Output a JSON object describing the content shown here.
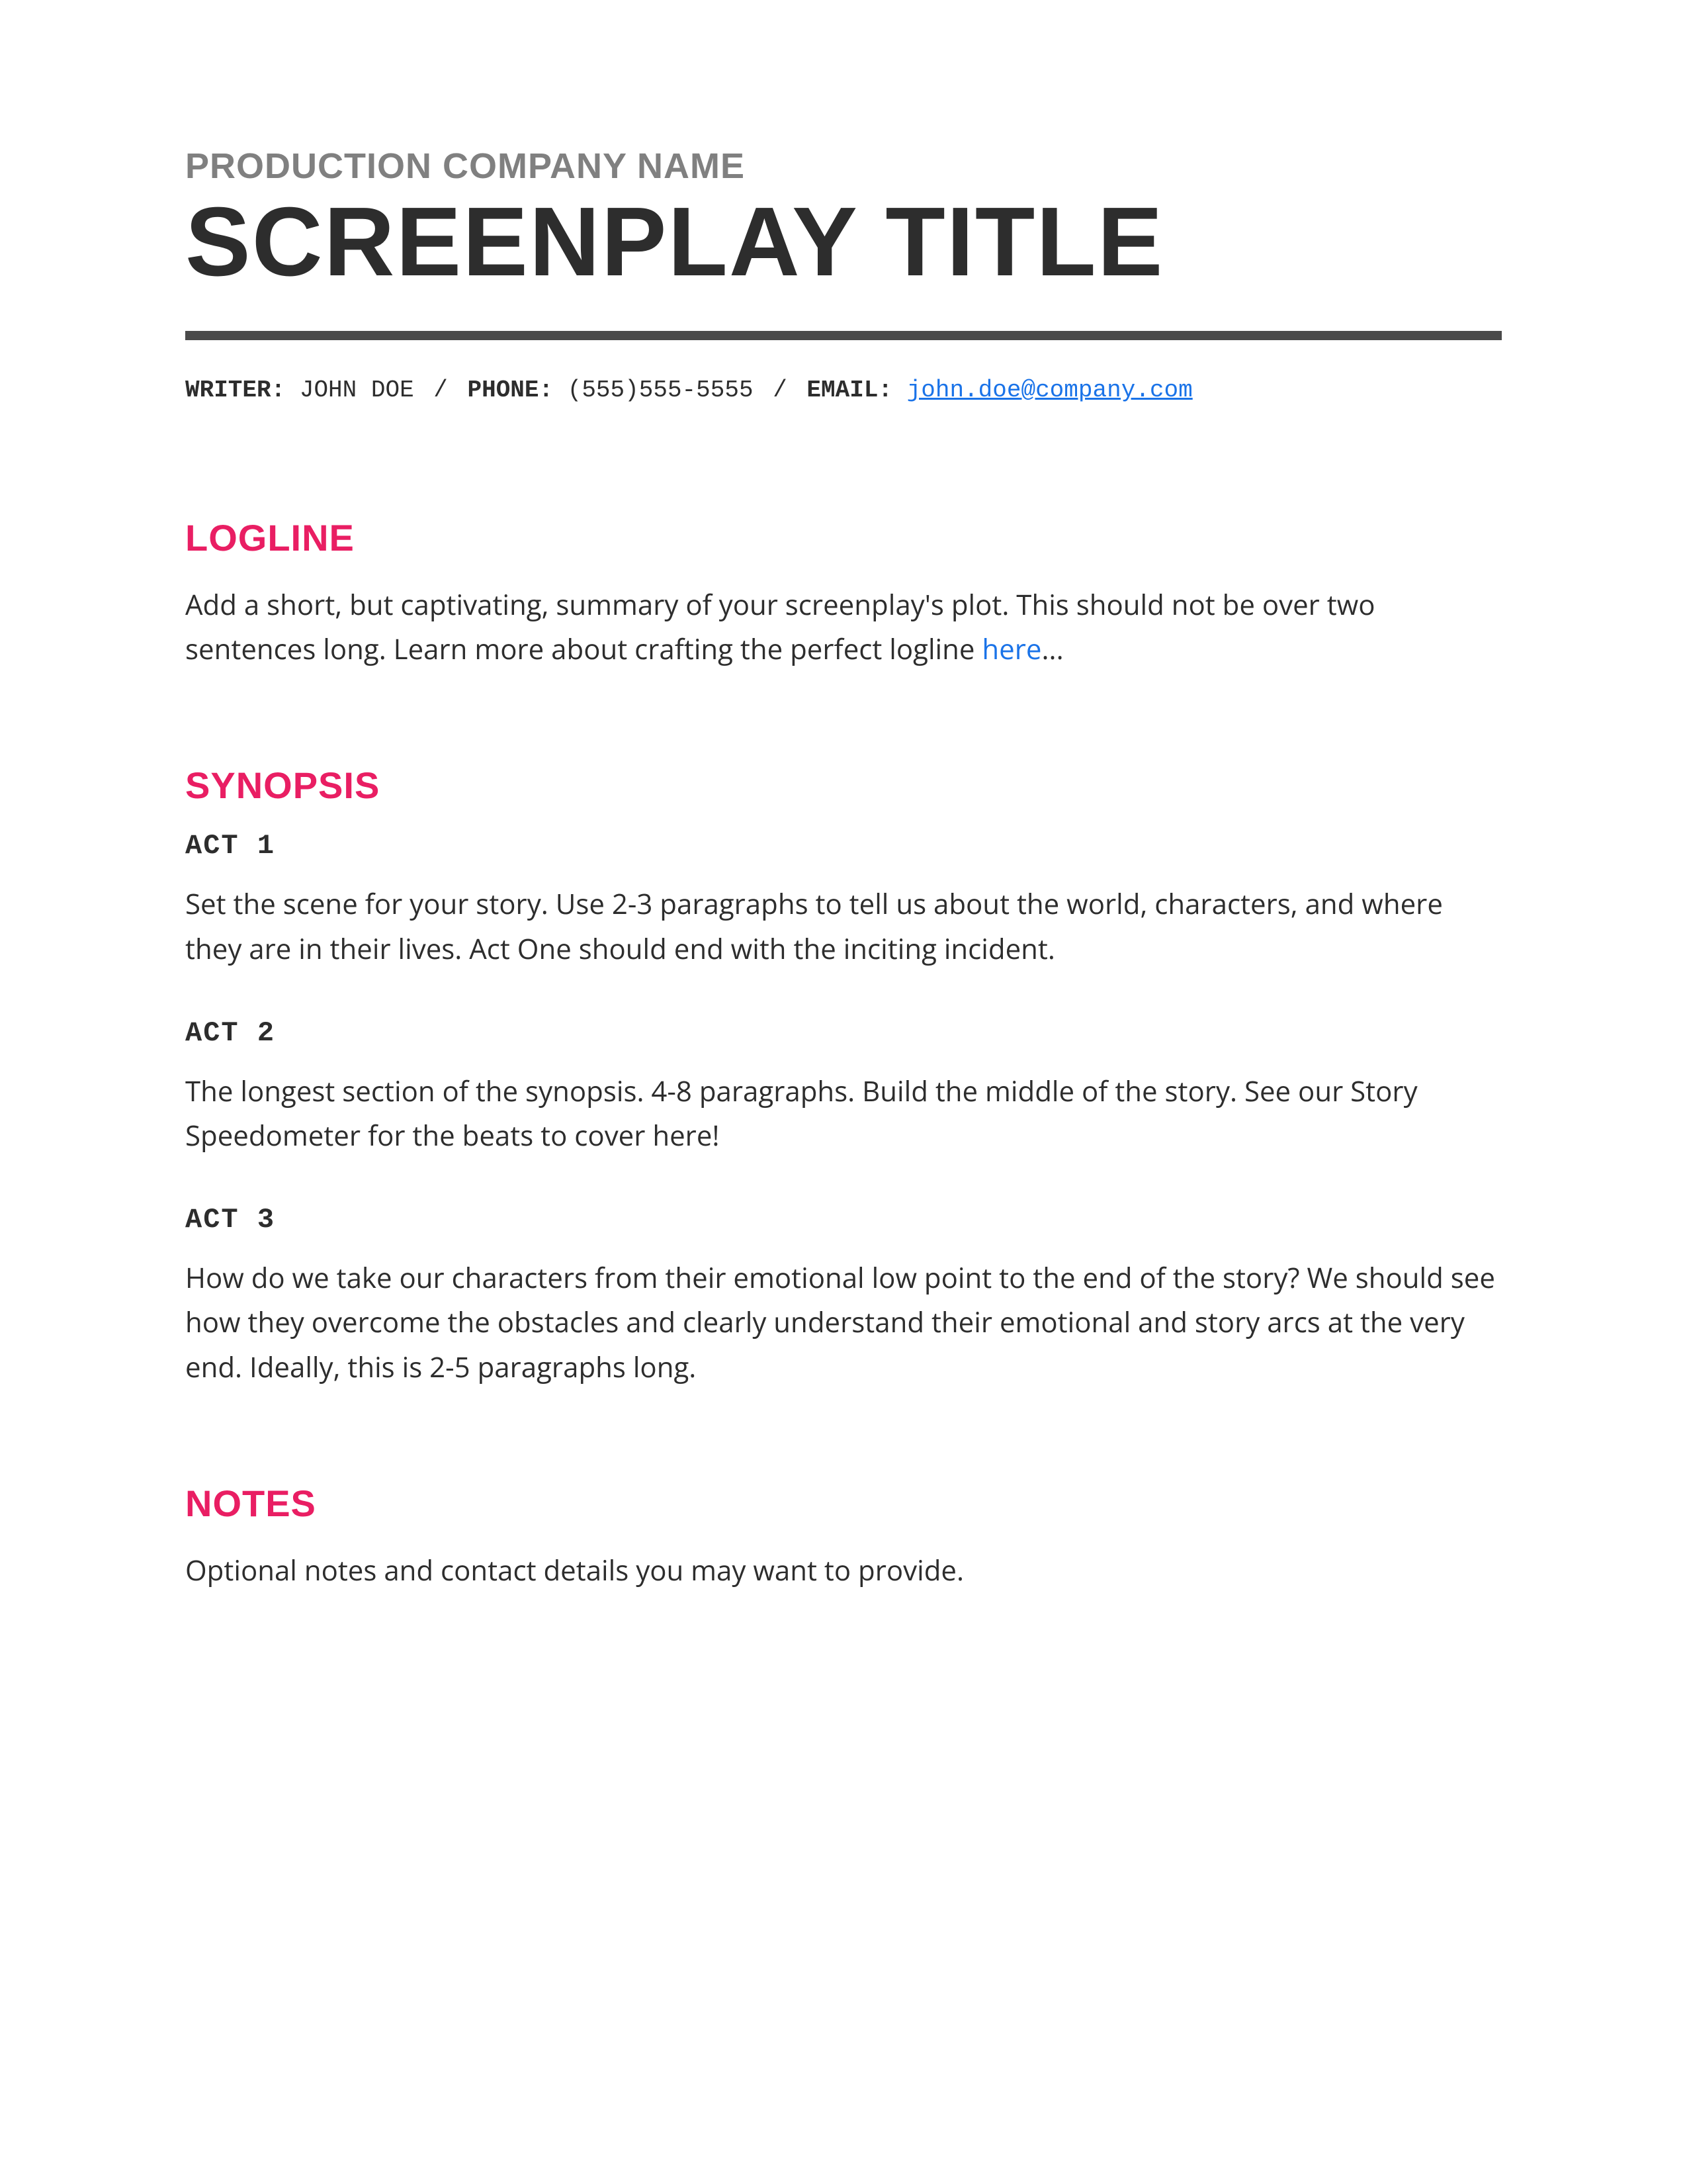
{
  "header": {
    "company_name": "PRODUCTION COMPANY NAME",
    "title": "SCREENPLAY TITLE"
  },
  "contact": {
    "writer_label": "WRITER:",
    "writer_value": " JOHN DOE ",
    "phone_label": "PHONE:",
    "phone_value": " (555)555-5555 ",
    "email_label": "EMAIL:",
    "email_value": "john.doe@company.com",
    "separator": " / "
  },
  "sections": {
    "logline": {
      "heading": "LOGLINE",
      "body_prefix": "Add a short, but captivating, summary of your screenplay's plot. This should not be over two sentences long. Learn more about crafting the perfect logline ",
      "link_text": "here",
      "body_suffix": "..."
    },
    "synopsis": {
      "heading": "SYNOPSIS",
      "acts": {
        "act1": {
          "heading": "ACT 1",
          "body": "Set the scene for your story. Use 2-3 paragraphs to tell us about the world, characters, and where they are in their lives. Act One should end with the inciting incident."
        },
        "act2": {
          "heading": "ACT 2",
          "body": "The longest section of the synopsis. 4-8 paragraphs. Build the middle of the story. See our Story Speedometer for the beats to cover here!"
        },
        "act3": {
          "heading": "ACT 3",
          "body": "How do we take our characters from their emotional low point to the end of the story? We should see how they overcome the obstacles and clearly understand their emotional and story arcs at the very end. Ideally, this is 2-5 paragraphs long."
        }
      }
    },
    "notes": {
      "heading": "NOTES",
      "body": "Optional notes and contact details you may want to provide."
    }
  },
  "colors": {
    "heading_pink": "#e91e63",
    "text_dark": "#2d2d2d",
    "text_gray": "#808080",
    "link_blue": "#1a73e8",
    "divider": "#4a4a4a",
    "background": "#ffffff"
  }
}
